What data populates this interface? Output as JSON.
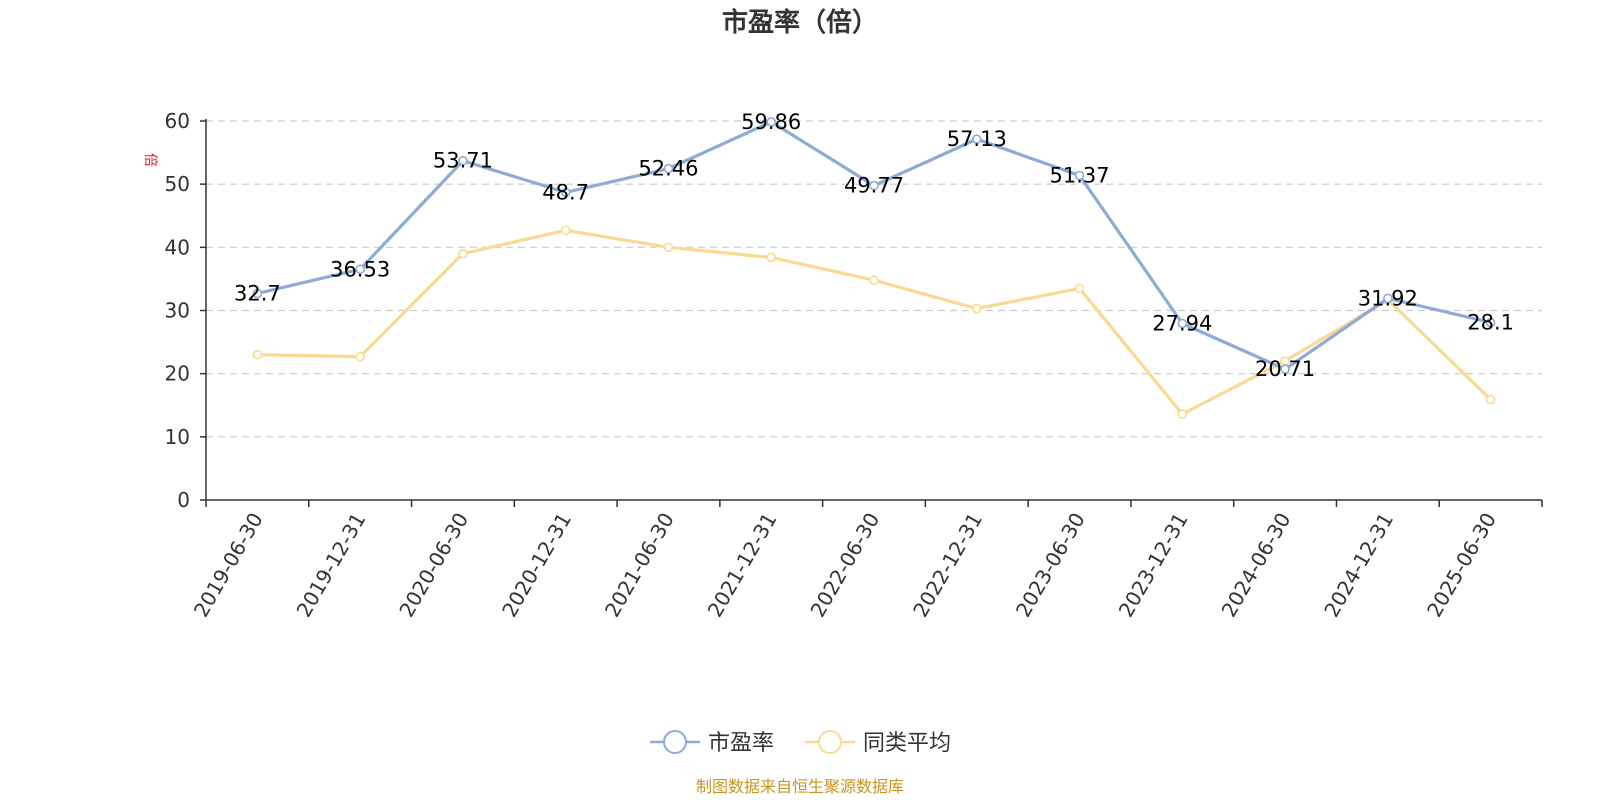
{
  "chart_data": {
    "type": "line",
    "title": "市盈率（倍）",
    "y_unit_label": "倍",
    "categories": [
      "2019-06-30",
      "2019-12-31",
      "2020-06-30",
      "2020-12-31",
      "2021-06-30",
      "2021-12-31",
      "2022-06-30",
      "2022-12-31",
      "2023-06-30",
      "2023-12-31",
      "2024-06-30",
      "2024-12-31",
      "2025-06-30"
    ],
    "series": [
      {
        "name": "市盈率",
        "color": "#8eaad6",
        "values": [
          32.7,
          36.53,
          53.71,
          48.7,
          52.46,
          59.86,
          49.77,
          57.13,
          51.37,
          27.94,
          20.71,
          31.92,
          28.1
        ],
        "labels": [
          "32.7",
          "36.53",
          "53.71",
          "48.7",
          "52.46",
          "59.86",
          "49.77",
          "57.13",
          "51.37",
          "27.94",
          "20.71",
          "31.92",
          "28.1"
        ]
      },
      {
        "name": "同类平均",
        "color": "#fad994",
        "values": [
          23.0,
          22.7,
          39.0,
          42.7,
          40.0,
          38.4,
          34.8,
          30.3,
          33.5,
          13.6,
          22.0,
          31.7,
          15.9
        ]
      }
    ],
    "ylim": [
      0,
      60
    ],
    "yticks": [
      0,
      10,
      20,
      30,
      40,
      50,
      60
    ],
    "grid": true,
    "legend_position": "bottom-center",
    "source_note": "制图数据来自恒生聚源数据库"
  }
}
